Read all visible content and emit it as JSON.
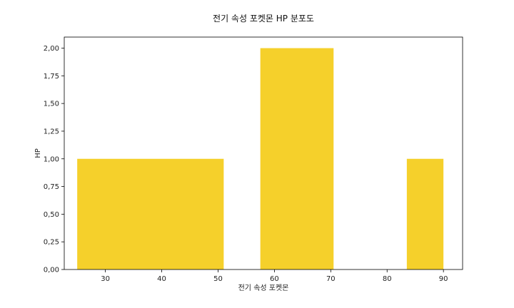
{
  "chart_data": {
    "type": "bar",
    "title": "전기 속성 포켓몬 HP 분포도",
    "xlabel": "전기 속성 포켓몬",
    "ylabel": "HP",
    "xlim": [
      22.7,
      93.4
    ],
    "ylim": [
      0,
      2.1
    ],
    "xticks": [
      30,
      40,
      50,
      60,
      70,
      80,
      90
    ],
    "xtick_labels": [
      "30",
      "40",
      "50",
      "60",
      "70",
      "80",
      "90"
    ],
    "yticks": [
      0,
      0.25,
      0.5,
      0.75,
      1.0,
      1.25,
      1.5,
      1.75,
      2.0
    ],
    "ytick_labels": [
      "0,00",
      "0,25",
      "0,50",
      "0,75",
      "1,00",
      "1,25",
      "1,50",
      "1,75",
      "2,00"
    ],
    "bins": [
      {
        "start": 25,
        "end": 51,
        "value": 1
      },
      {
        "start": 57.5,
        "end": 70.5,
        "value": 2
      },
      {
        "start": 83.5,
        "end": 90,
        "value": 1
      }
    ],
    "bar_color": "#f5d02b",
    "grid": false,
    "legend": "none"
  }
}
